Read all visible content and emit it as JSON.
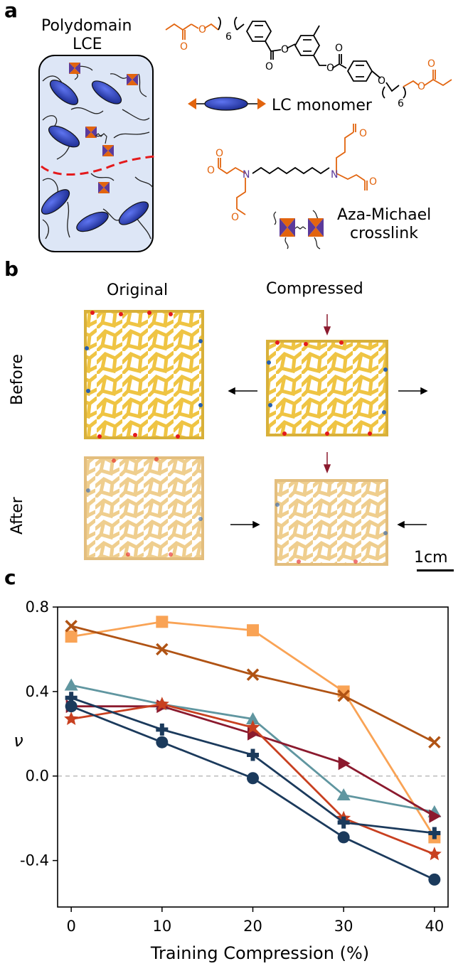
{
  "panels": {
    "a": {
      "label": "a",
      "title_line1": "Polydomain",
      "title_line2": "LCE",
      "monomer_label": "LC monomer",
      "crosslink_line1": "Aza-Michael",
      "crosslink_line2": "crosslink",
      "subscript_6": "6",
      "atom_o": "O",
      "atom_n": "N"
    },
    "b": {
      "label": "b",
      "col_original": "Original",
      "col_compressed": "Compressed",
      "row_before": "Before",
      "row_after": "After",
      "scale_label": "1cm"
    },
    "c": {
      "label": "c"
    }
  },
  "colors": {
    "blue_body": "#3B4FC4",
    "orange": "#E2640E",
    "purple": "#5B3A9B",
    "lattice_yellow": "#F0C844",
    "dash_red": "#E41A1C"
  },
  "chart_data": {
    "type": "line",
    "xlabel": "Training Compression (%)",
    "ylabel": "ν",
    "x": [
      0,
      10,
      20,
      30,
      40
    ],
    "xticks": [
      "0",
      "10",
      "20",
      "30",
      "40"
    ],
    "yticks": [
      "0.8",
      "0.4",
      "0.0",
      "-0.4"
    ],
    "xlim": [
      -1.5,
      41.5
    ],
    "ylim": [
      -0.62,
      0.8
    ],
    "zero_line": "dashed",
    "series": [
      {
        "marker": "square",
        "color": "#F9A355",
        "values": [
          0.66,
          0.73,
          0.69,
          0.4,
          -0.29
        ]
      },
      {
        "marker": "x",
        "color": "#B05314",
        "values": [
          0.71,
          0.6,
          0.48,
          0.38,
          0.16
        ]
      },
      {
        "marker": "triangle-up",
        "color": "#6096A0",
        "values": [
          0.43,
          0.34,
          0.27,
          -0.09,
          -0.17
        ]
      },
      {
        "marker": "triangle-right",
        "color": "#8B1A2E",
        "values": [
          0.33,
          0.33,
          0.2,
          0.06,
          -0.19
        ]
      },
      {
        "marker": "star",
        "color": "#C84020",
        "values": [
          0.27,
          0.34,
          0.23,
          -0.2,
          -0.37
        ]
      },
      {
        "marker": "plus",
        "color": "#1B3A5C",
        "values": [
          0.37,
          0.22,
          0.1,
          -0.22,
          -0.27
        ]
      },
      {
        "marker": "circle",
        "color": "#1B3A5C",
        "values": [
          0.33,
          0.16,
          -0.01,
          -0.29,
          -0.49
        ]
      }
    ]
  }
}
